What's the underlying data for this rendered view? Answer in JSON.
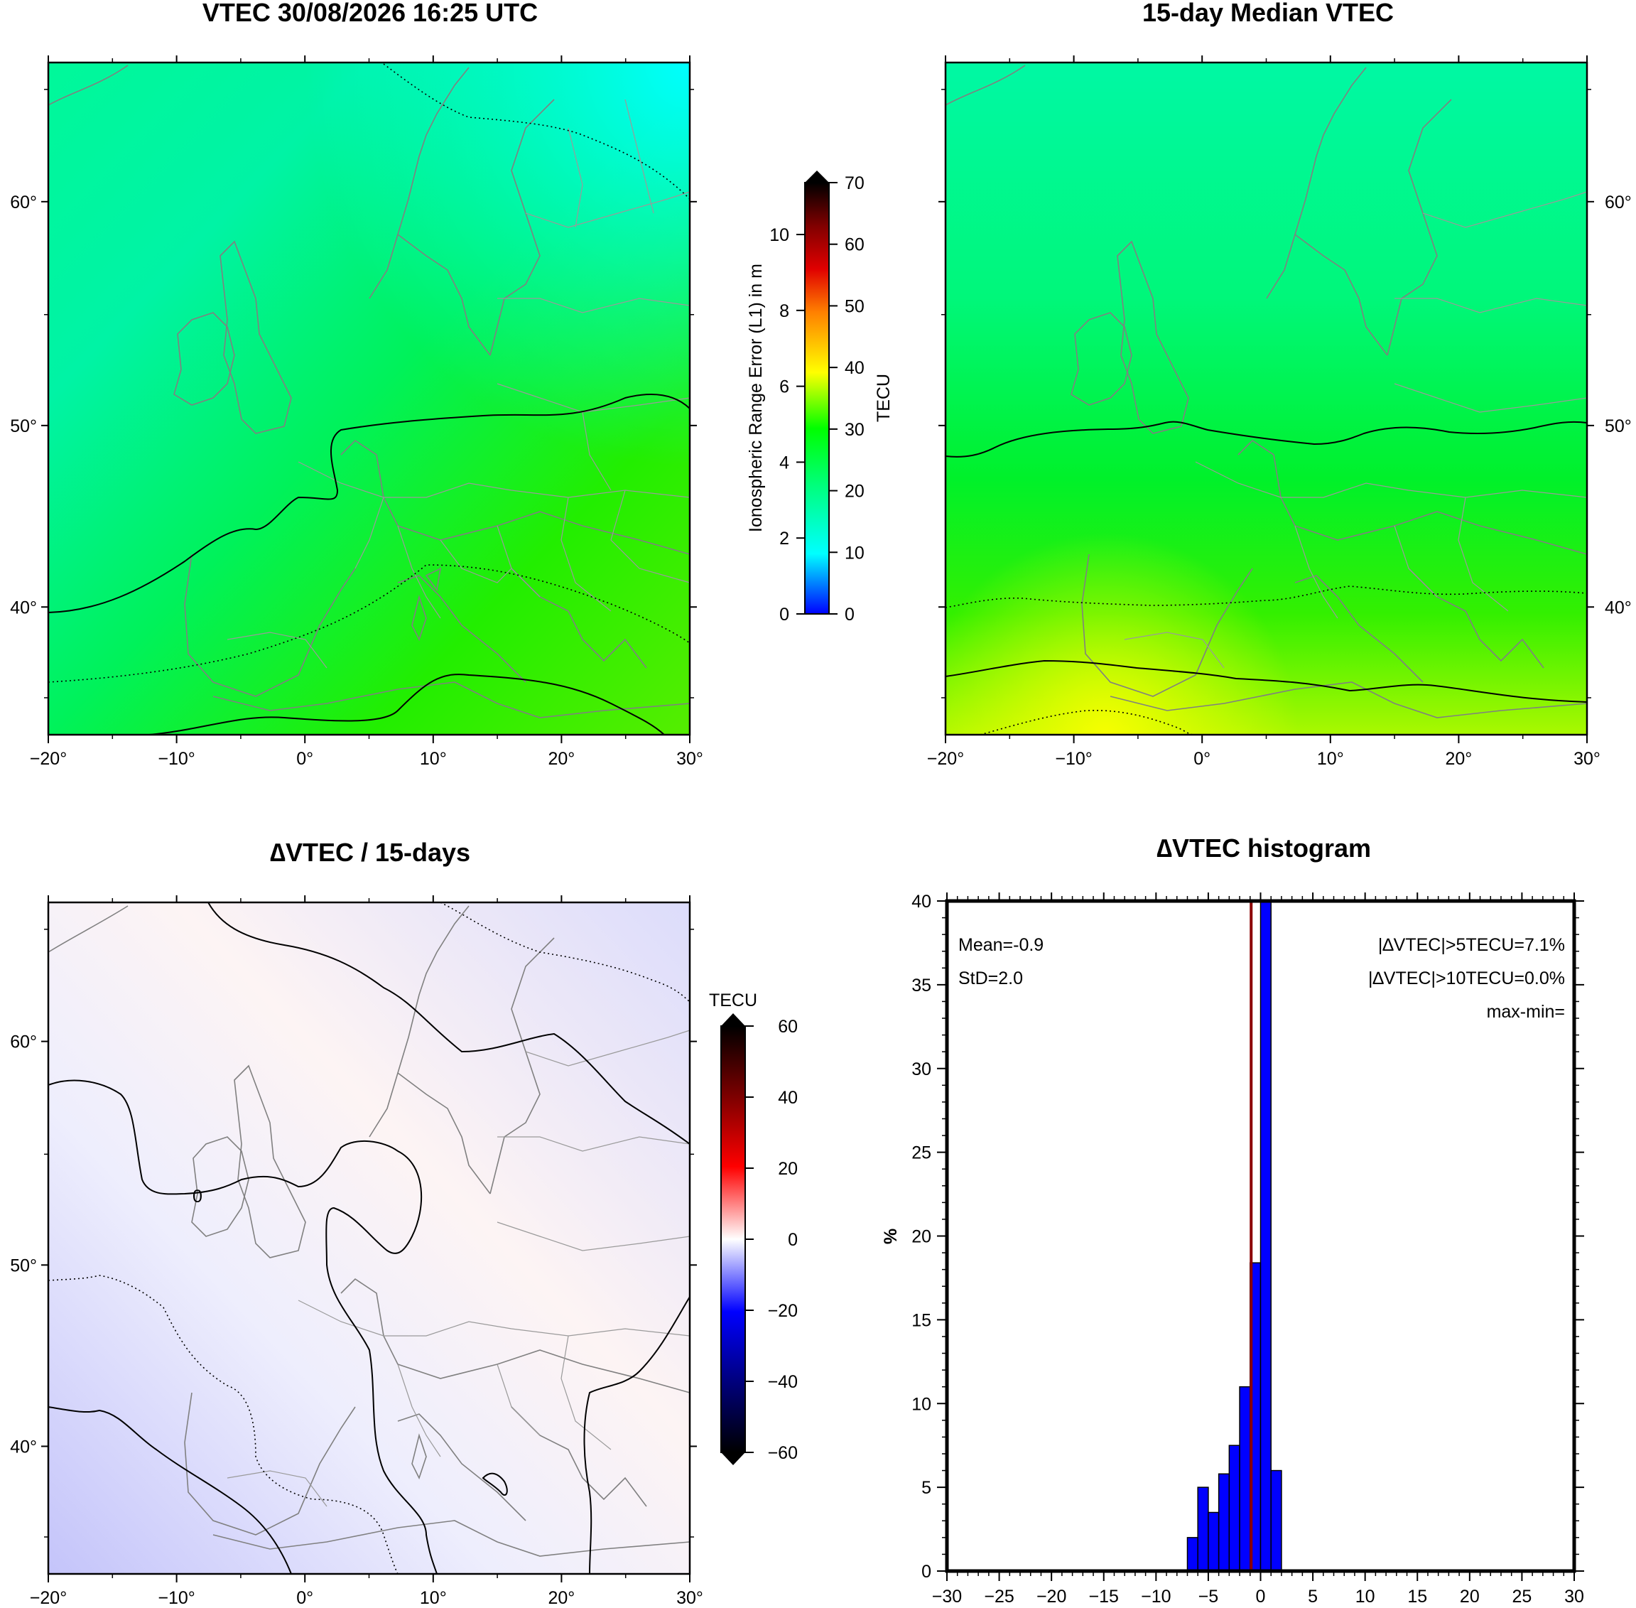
{
  "chart_data": [
    {
      "type": "heatmap",
      "title": "VTEC 30/08/2026 16:25 UTC",
      "x_ticks": [
        "−20°",
        "−10°",
        "0°",
        "10°",
        "20°",
        "30°"
      ],
      "y_ticks_left": [
        "60°",
        "50°",
        "40°"
      ],
      "contour_levels_tecu": [
        20,
        25,
        30
      ]
    },
    {
      "type": "heatmap",
      "title": "15-day Median VTEC",
      "x_ticks": [
        "−20°",
        "−10°",
        "0°",
        "10°",
        "20°",
        "30°"
      ],
      "y_ticks_right": [
        "60°",
        "50°",
        "40°"
      ],
      "contour_levels_tecu": [
        25,
        30,
        35,
        40
      ]
    },
    {
      "type": "colorbar",
      "label_left": "Ionospheric Range Error (L1) in m",
      "label_right": "TECU",
      "left_ticks": [
        "0",
        "2",
        "4",
        "6",
        "8",
        "10"
      ],
      "right_ticks": [
        "0",
        "10",
        "20",
        "30",
        "40",
        "50",
        "60",
        "70"
      ],
      "range_tecu": [
        0,
        70
      ]
    },
    {
      "type": "heatmap",
      "title": "∆VTEC / 15-days",
      "x_ticks": [
        "−20°",
        "−10°",
        "0°",
        "10°",
        "20°",
        "30°"
      ],
      "y_ticks_left": [
        "60°",
        "50°",
        "40°"
      ],
      "contour_label": "0"
    },
    {
      "type": "colorbar",
      "label_top": "TECU",
      "ticks": [
        "60",
        "40",
        "20",
        "0",
        "−20",
        "−40",
        "−60"
      ],
      "range_tecu": [
        -60,
        60
      ]
    },
    {
      "type": "bar",
      "title": "∆VTEC histogram",
      "ylabel": "%",
      "xlim": [
        -30,
        30
      ],
      "ylim": [
        0,
        40
      ],
      "x_ticks": [
        "−30",
        "−25",
        "−20",
        "−15",
        "−10",
        "−5",
        "0",
        "5",
        "10",
        "15",
        "20",
        "25",
        "30"
      ],
      "y_ticks": [
        "0",
        "5",
        "10",
        "15",
        "20",
        "25",
        "30",
        "35",
        "40"
      ],
      "bin_width": 1,
      "bins": [
        {
          "x0": -7,
          "value": 2.0
        },
        {
          "x0": -6,
          "value": 5.0
        },
        {
          "x0": -5,
          "value": 3.5
        },
        {
          "x0": -4,
          "value": 5.8
        },
        {
          "x0": -3,
          "value": 7.5
        },
        {
          "x0": -2,
          "value": 11.0
        },
        {
          "x0": -1,
          "value": 18.4
        },
        {
          "x0": 0,
          "value": 40.0
        },
        {
          "x0": 1,
          "value": 6.0
        }
      ],
      "mean_value": -0.9,
      "mean_line_color": "#8b0000",
      "bar_color": "#0000ff",
      "annotations": {
        "mean": "Mean=-0.9",
        "std": "StD=2.0",
        "gt5": "|∆VTEC|>5TECU=7.1%",
        "gt10": "|∆VTEC|>10TECU=0.0%",
        "maxmin": "max-min="
      }
    }
  ]
}
